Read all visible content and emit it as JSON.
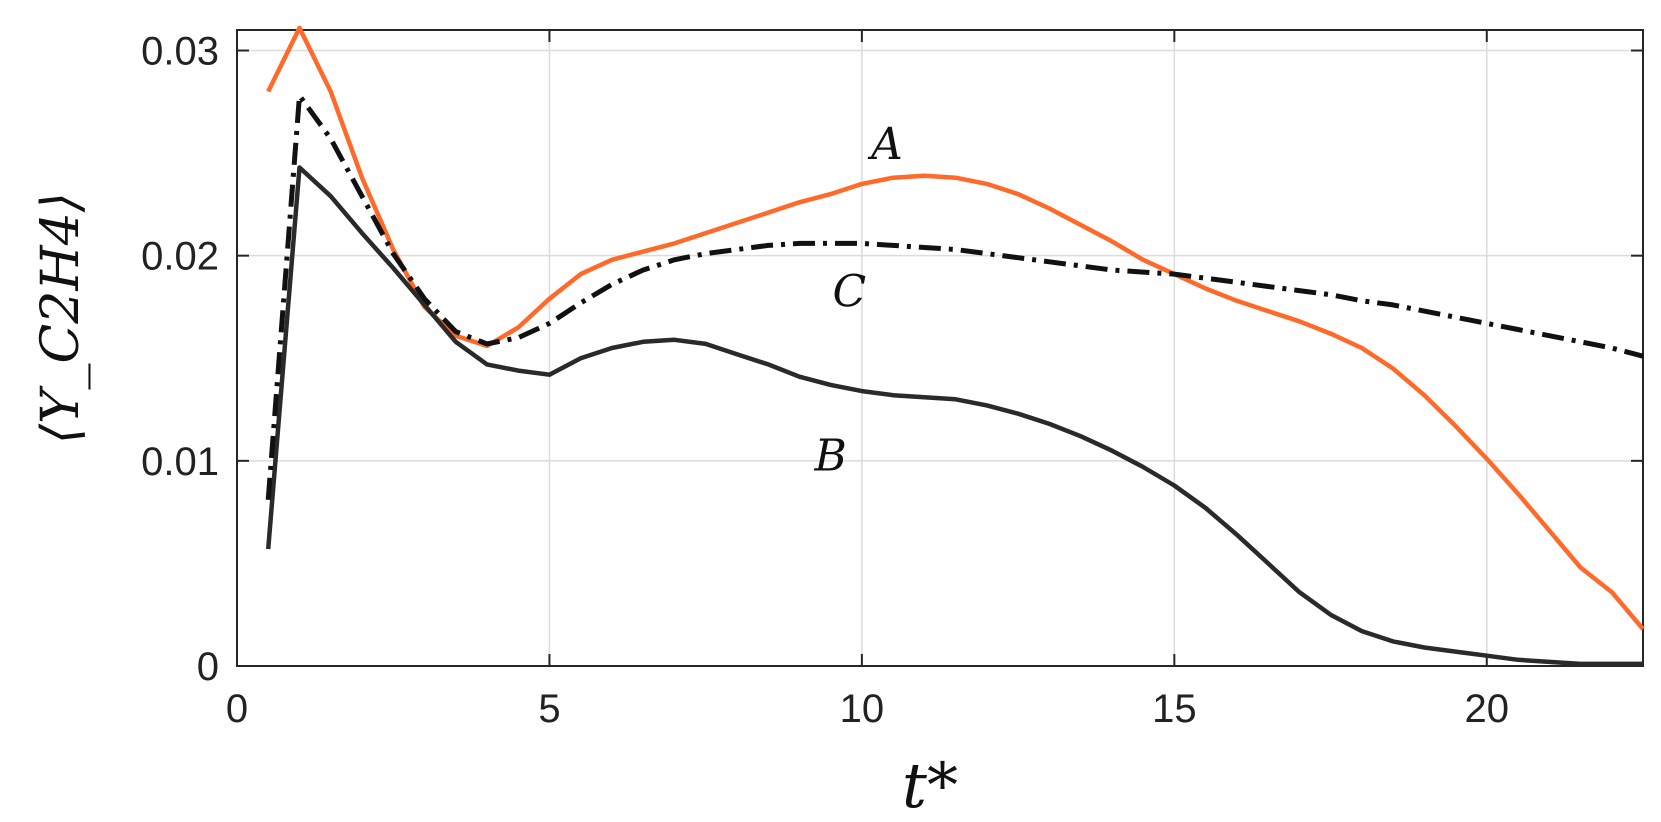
{
  "chart_data": {
    "type": "line",
    "title": "",
    "xlabel": "t*",
    "ylabel": "⟨Y_C2H4⟩",
    "xlim": [
      0,
      22.5
    ],
    "ylim": [
      0,
      0.031
    ],
    "xticks": [
      0,
      5,
      10,
      15,
      20
    ],
    "yticks": [
      0,
      0.01,
      0.02,
      0.03
    ],
    "xtick_labels": [
      "0",
      "5",
      "10",
      "15",
      "20"
    ],
    "ytick_labels": [
      "0",
      "0.01",
      "0.02",
      "0.03"
    ],
    "grid": true,
    "legend": "none",
    "series": [
      {
        "name": "A",
        "color": "#ff6a2a",
        "style": "solid",
        "x": [
          0.5,
          1,
          1.5,
          2,
          2.5,
          3,
          3.5,
          4,
          4.5,
          5,
          5.5,
          6,
          6.5,
          7,
          7.5,
          8,
          8.5,
          9,
          9.5,
          10,
          10.5,
          11,
          11.5,
          12,
          12.5,
          13,
          13.5,
          14,
          14.5,
          15,
          15.5,
          16,
          16.5,
          17,
          17.5,
          18,
          18.5,
          19,
          19.5,
          20,
          20.5,
          21,
          21.5,
          22,
          22.5
        ],
        "y": [
          0.028,
          0.0311,
          0.028,
          0.0238,
          0.0203,
          0.0175,
          0.0161,
          0.0156,
          0.0165,
          0.0179,
          0.0191,
          0.0198,
          0.0202,
          0.0206,
          0.0211,
          0.0216,
          0.0221,
          0.0226,
          0.023,
          0.0235,
          0.0238,
          0.0239,
          0.0238,
          0.0235,
          0.023,
          0.0223,
          0.0215,
          0.0207,
          0.0198,
          0.0191,
          0.0184,
          0.0178,
          0.0173,
          0.0168,
          0.0162,
          0.0155,
          0.0145,
          0.0132,
          0.0117,
          0.0101,
          0.0084,
          0.0066,
          0.0048,
          0.0036,
          0.0018
        ]
      },
      {
        "name": "B",
        "color": "#2a2a2a",
        "style": "solid",
        "x": [
          0.5,
          1,
          1.5,
          2,
          2.5,
          3,
          3.5,
          4,
          4.5,
          5,
          5.5,
          6,
          6.5,
          7,
          7.5,
          8,
          8.5,
          9,
          9.5,
          10,
          10.5,
          11,
          11.5,
          12,
          12.5,
          13,
          13.5,
          14,
          14.5,
          15,
          15.5,
          16,
          16.5,
          17,
          17.5,
          18,
          18.5,
          19,
          19.5,
          20,
          20.5,
          21,
          21.5,
          22,
          22.5
        ],
        "y": [
          0.0057,
          0.0243,
          0.0229,
          0.0211,
          0.0194,
          0.0176,
          0.0158,
          0.0147,
          0.0144,
          0.0142,
          0.015,
          0.0155,
          0.0158,
          0.0159,
          0.0157,
          0.0152,
          0.0147,
          0.0141,
          0.0137,
          0.0134,
          0.0132,
          0.0131,
          0.013,
          0.0127,
          0.0123,
          0.0118,
          0.0112,
          0.0105,
          0.0097,
          0.0088,
          0.0077,
          0.0064,
          0.005,
          0.0036,
          0.0025,
          0.0017,
          0.0012,
          0.0009,
          0.0007,
          0.0005,
          0.0003,
          0.0002,
          0.0001,
          0.0001,
          0.0001
        ]
      },
      {
        "name": "C",
        "color": "#111111",
        "style": "dashdot",
        "x": [
          0.5,
          1,
          1.5,
          2,
          2.5,
          3,
          3.5,
          4,
          4.5,
          5,
          5.5,
          6,
          6.5,
          7,
          7.5,
          8,
          8.5,
          9,
          9.5,
          10,
          10.5,
          11,
          11.5,
          12,
          12.5,
          13,
          13.5,
          14,
          14.5,
          15,
          15.5,
          16,
          16.5,
          17,
          17.5,
          18,
          18.5,
          19,
          19.5,
          20,
          20.5,
          21,
          21.5,
          22,
          22.5
        ],
        "y": [
          0.0081,
          0.0278,
          0.0257,
          0.0229,
          0.0201,
          0.0179,
          0.0163,
          0.0157,
          0.016,
          0.0167,
          0.0177,
          0.0186,
          0.0193,
          0.0198,
          0.0201,
          0.0203,
          0.0205,
          0.0206,
          0.0206,
          0.0206,
          0.0205,
          0.0204,
          0.0203,
          0.0201,
          0.0199,
          0.0197,
          0.0195,
          0.0193,
          0.0192,
          0.0191,
          0.0189,
          0.0187,
          0.0185,
          0.0183,
          0.0181,
          0.0178,
          0.0176,
          0.0173,
          0.017,
          0.0167,
          0.0164,
          0.0161,
          0.0158,
          0.0155,
          0.0151
        ]
      }
    ],
    "annotations": [
      {
        "text": "A",
        "x": 10.4,
        "y": 0.0255
      },
      {
        "text": "C",
        "x": 9.8,
        "y": 0.0183
      },
      {
        "text": "B",
        "x": 9.5,
        "y": 0.0103
      }
    ]
  }
}
